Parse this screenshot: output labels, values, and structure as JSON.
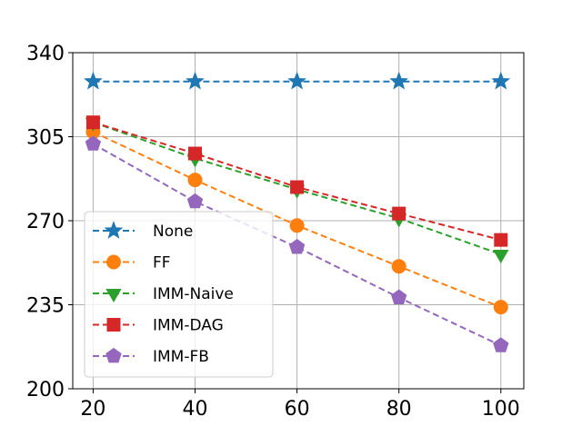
{
  "chart_data": {
    "type": "line",
    "title": "",
    "xlabel": "",
    "ylabel": "",
    "x": [
      20,
      40,
      60,
      80,
      100
    ],
    "xticks": [
      "20",
      "40",
      "60",
      "80",
      "100"
    ],
    "yticks": [
      "200",
      "235",
      "270",
      "305",
      "340"
    ],
    "xlim": [
      16,
      104.5
    ],
    "ylim": [
      200,
      340
    ],
    "grid": true,
    "legend_position": "lower-left",
    "series": [
      {
        "name": "None",
        "values": [
          328,
          328,
          328,
          328,
          328
        ],
        "color": "#1f77b4",
        "marker": "star"
      },
      {
        "name": "FF",
        "values": [
          307,
          287,
          268,
          251,
          234
        ],
        "color": "#ff7f0e",
        "marker": "circle"
      },
      {
        "name": "IMM-Naive",
        "values": [
          311,
          296,
          283,
          271,
          256
        ],
        "color": "#2ca02c",
        "marker": "triangle-down"
      },
      {
        "name": "IMM-DAG",
        "values": [
          311,
          298,
          284,
          273,
          262
        ],
        "color": "#d62728",
        "marker": "square"
      },
      {
        "name": "IMM-FB",
        "values": [
          302,
          278,
          259,
          238,
          218
        ],
        "color": "#9467bd",
        "marker": "pentagon"
      }
    ]
  }
}
